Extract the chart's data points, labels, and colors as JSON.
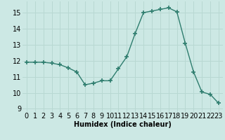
{
  "x": [
    0,
    1,
    2,
    3,
    4,
    5,
    6,
    7,
    8,
    9,
    10,
    11,
    12,
    13,
    14,
    15,
    16,
    17,
    18,
    19,
    20,
    21,
    22,
    23
  ],
  "y": [
    11.9,
    11.9,
    11.9,
    11.85,
    11.75,
    11.55,
    11.3,
    10.5,
    10.6,
    10.75,
    10.75,
    11.5,
    12.25,
    13.7,
    15.0,
    15.1,
    15.2,
    15.3,
    15.05,
    13.1,
    11.3,
    10.05,
    9.9,
    9.35
  ],
  "line_color": "#2e7d6e",
  "marker": "+",
  "markersize": 4,
  "bg_color": "#cce8e4",
  "grid_color": "#b8d8d2",
  "xlabel": "Humidex (Indice chaleur)",
  "xlabel_fontsize": 7,
  "tick_fontsize": 7,
  "xlim": [
    -0.5,
    23.5
  ],
  "ylim": [
    8.8,
    15.7
  ],
  "yticks": [
    9,
    10,
    11,
    12,
    13,
    14,
    15
  ],
  "xticks": [
    0,
    1,
    2,
    3,
    4,
    5,
    6,
    7,
    8,
    9,
    10,
    11,
    12,
    13,
    14,
    15,
    16,
    17,
    18,
    19,
    20,
    21,
    22,
    23
  ]
}
